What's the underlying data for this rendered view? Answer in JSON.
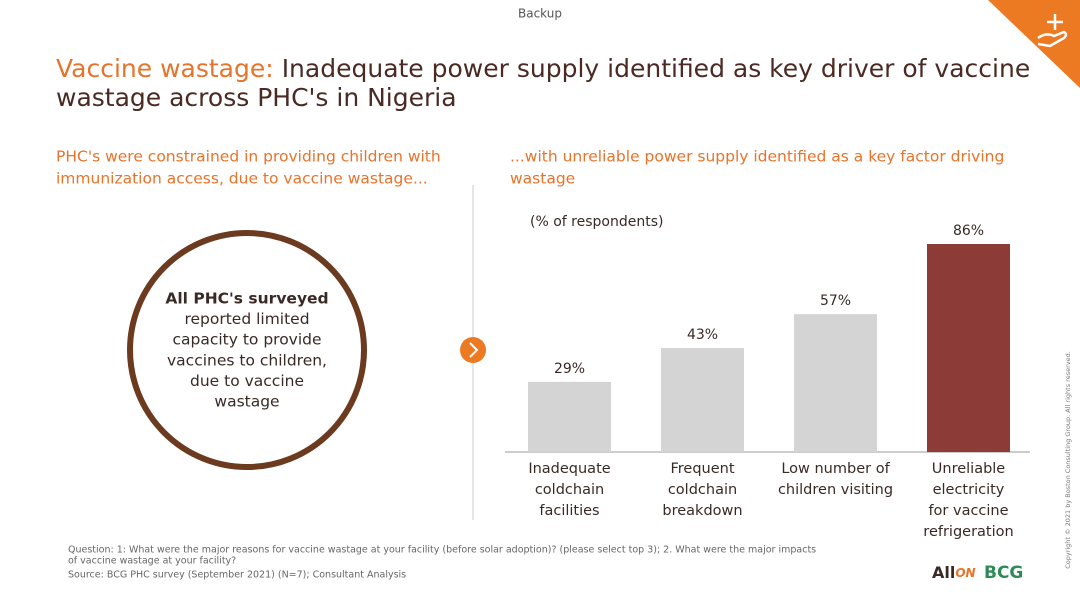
{
  "header": {
    "tag": "Backup",
    "title_lead": "Vaccine wastage:",
    "title_lines": [
      "Inadequate power supply identified as key driver of vaccine",
      "wastage across PHC's in Nigeria"
    ]
  },
  "left": {
    "subtitle": [
      "PHC's were constrained in providing children with",
      "immunization access, due to vaccine wastage..."
    ],
    "circle_text": [
      "All PHC's surveyed",
      "reported limited",
      "capacity to provide",
      "vaccines to children,",
      "due to vaccine",
      "wastage"
    ]
  },
  "right": {
    "subtitle": [
      "...with unreliable power supply identified as a key factor driving",
      "wastage"
    ]
  },
  "chart_data": {
    "type": "bar",
    "unit_label": "(% of respondents)",
    "categories": [
      [
        "Inadequate",
        "coldchain",
        "facilities"
      ],
      [
        "Frequent",
        "coldchain",
        "breakdown"
      ],
      [
        "Low number of",
        "children visiting"
      ],
      [
        "Unreliable",
        "electricity",
        "for vaccine",
        "refrigeration"
      ]
    ],
    "values": [
      29,
      43,
      57,
      86
    ],
    "value_labels": [
      "29%",
      "43%",
      "57%",
      "86%"
    ],
    "colors": [
      "#d4d4d4",
      "#d4d4d4",
      "#d4d4d4",
      "#8c3b36"
    ]
  },
  "footnotes": [
    "Question: 1: What were the major reasons for vaccine wastage at your facility (before solar adoption)? (please select top 3); 2. What were the major impacts",
    "of vaccine wastage at your facility?",
    "Source: BCG PHC survey (September 2021) (N=7); Consultant Analysis"
  ],
  "logos": {
    "allon": [
      "All",
      "ON"
    ],
    "bcg": "BCG"
  },
  "copyright": "Copyright © 2021 by Boston Consulting Group. All rights reserved."
}
